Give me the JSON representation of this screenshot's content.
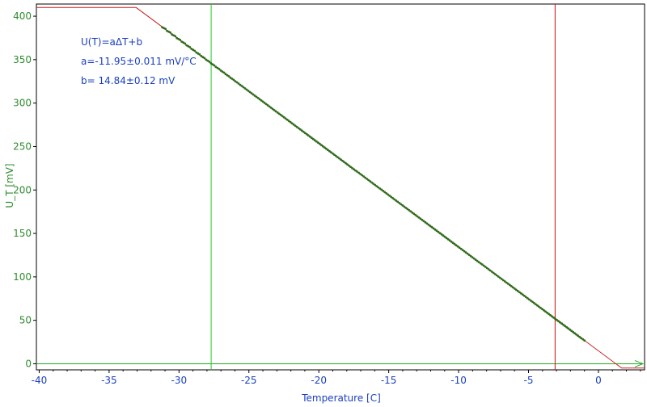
{
  "chart_data": {
    "type": "scatter",
    "xlabel": "Temperature [C]",
    "ylabel": "U_T [mV]",
    "xlim": [
      -40.2,
      3.3
    ],
    "ylim": [
      -7,
      414
    ],
    "x_ticks": [
      -40,
      -35,
      -30,
      -25,
      -20,
      -15,
      -10,
      -5,
      0
    ],
    "y_ticks": [
      0,
      50,
      100,
      150,
      200,
      250,
      300,
      350,
      400
    ],
    "annotations": [
      "U(T)=aΔT+b",
      "a=-11.95±0.011 mV/°C",
      "b= 14.84±0.12 mV"
    ],
    "fit": {
      "a": -11.95,
      "b": 14.84,
      "saturation_high": 410,
      "saturation_low": -5
    },
    "data_range": {
      "x_start": -31.2,
      "x_end": -1.0
    },
    "markers": {
      "green_vertical_x": -27.7,
      "red_vertical_x": -3.1
    },
    "colors": {
      "data": "#2f6b1a",
      "fit": "#c81e1e",
      "green_marker": "#22cc22",
      "red_marker": "#cc1111",
      "axis": "#000000",
      "zero_line": "#22aa22"
    }
  }
}
